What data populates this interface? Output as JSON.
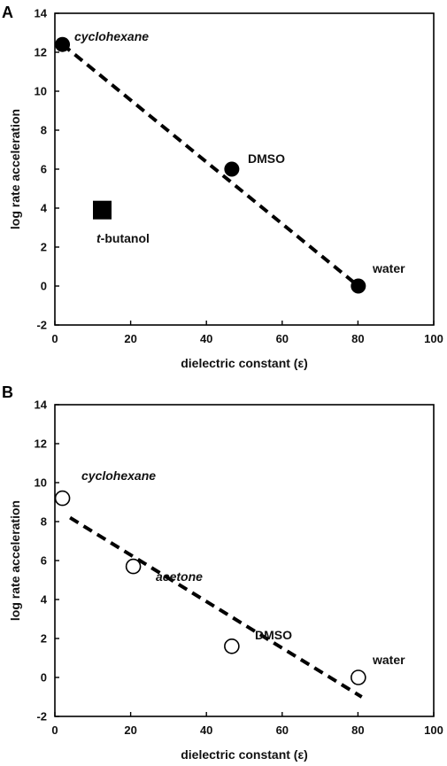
{
  "chart_data": [
    {
      "panel": "A",
      "type": "scatter",
      "xlabel": "dielectric constant (ε)",
      "ylabel": "log rate acceleration",
      "xlim": [
        0,
        100
      ],
      "ylim": [
        -2,
        14
      ],
      "xticks": [
        "0",
        "20",
        "40",
        "60",
        "80",
        "100"
      ],
      "yticks": [
        "-2",
        "0",
        "2",
        "4",
        "6",
        "8",
        "10",
        "12",
        "14"
      ],
      "grid": false,
      "series": [
        {
          "marker": "filled-circle",
          "points": [
            {
              "label": "cyclohexane",
              "x": 2,
              "y": 12.4
            },
            {
              "label": "DMSO",
              "x": 46.7,
              "y": 6.0
            },
            {
              "label": "water",
              "x": 80.1,
              "y": 0.0
            }
          ]
        },
        {
          "marker": "filled-square",
          "points": [
            {
              "label": "t-butanol",
              "x": 12.5,
              "y": 3.9
            }
          ]
        }
      ],
      "fit_line": {
        "style": "dashed",
        "x": [
          2,
          80.1
        ],
        "y": [
          12.4,
          0.0
        ]
      },
      "annotations": [
        {
          "text": "cyclohexane",
          "italic": true
        },
        {
          "text": "DMSO",
          "italic": false
        },
        {
          "text": "water",
          "italic": false
        },
        {
          "text_italic_part": "t",
          "text": "-butanol",
          "italic": false
        }
      ],
      "colors": {
        "marker": "#000000",
        "line": "#000000"
      }
    },
    {
      "panel": "B",
      "type": "scatter",
      "xlabel": "dielectric constant (ε)",
      "ylabel": "log rate acceleration",
      "xlim": [
        0,
        100
      ],
      "ylim": [
        -2,
        14
      ],
      "xticks": [
        "0",
        "20",
        "40",
        "60",
        "80",
        "100"
      ],
      "yticks": [
        "-2",
        "0",
        "2",
        "4",
        "6",
        "8",
        "10",
        "12",
        "14"
      ],
      "grid": false,
      "series": [
        {
          "marker": "open-circle",
          "points": [
            {
              "label": "cyclohexane",
              "x": 2,
              "y": 9.2
            },
            {
              "label": "acetone",
              "x": 20.7,
              "y": 5.7
            },
            {
              "label": "DMSO",
              "x": 46.7,
              "y": 1.6
            },
            {
              "label": "water",
              "x": 80.1,
              "y": 0.0
            }
          ]
        }
      ],
      "fit_line": {
        "style": "dashed",
        "x": [
          4,
          81
        ],
        "y": [
          8.2,
          -1.0
        ]
      },
      "annotations": [
        {
          "text": "cyclohexane",
          "italic": true
        },
        {
          "text": "acetone",
          "italic": true
        },
        {
          "text": "DMSO",
          "italic": false
        },
        {
          "text": "water",
          "italic": false
        }
      ],
      "colors": {
        "marker": "#000000",
        "line": "#000000"
      }
    }
  ]
}
